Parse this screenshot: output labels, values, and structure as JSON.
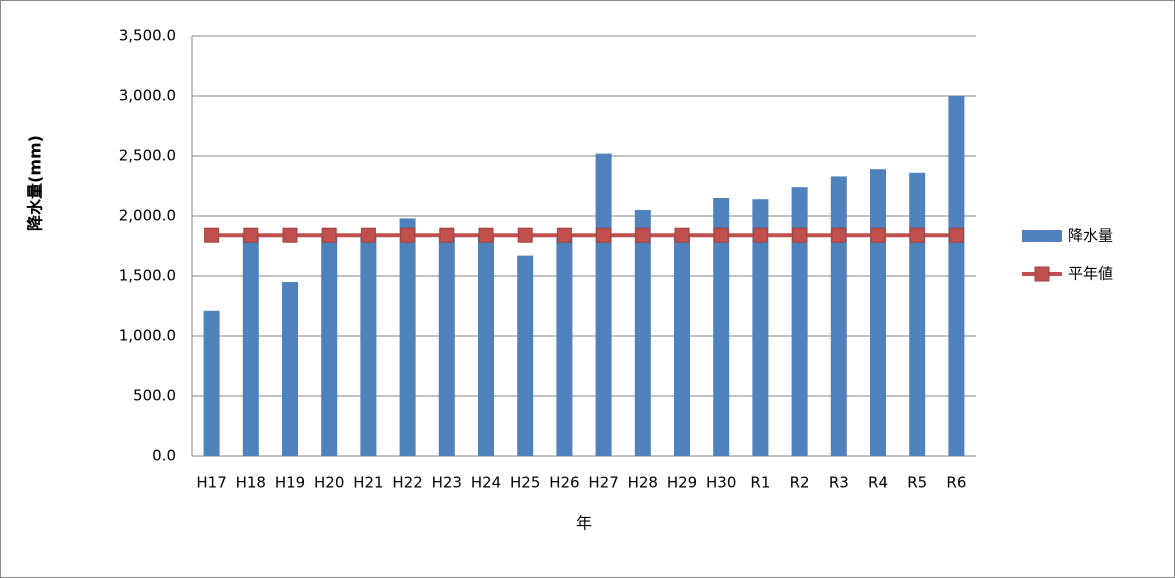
{
  "chart_data": {
    "type": "bar",
    "y_label": "降水量(mm)",
    "x_label": "年",
    "categories": [
      "H17",
      "H18",
      "H19",
      "H20",
      "H21",
      "H22",
      "H23",
      "H24",
      "H25",
      "H26",
      "H27",
      "H28",
      "H29",
      "H30",
      "R1",
      "R2",
      "R3",
      "R4",
      "R5",
      "R6"
    ],
    "series": [
      {
        "name": "降水量",
        "type": "bar",
        "color": "#4f81bd",
        "values": [
          1210,
          1860,
          1450,
          1850,
          1850,
          1980,
          1850,
          1850,
          1670,
          1850,
          2520,
          2050,
          1840,
          2150,
          2140,
          2240,
          2330,
          2390,
          2360,
          3000
        ]
      },
      {
        "name": "平年値",
        "type": "line",
        "color": "#c0504d",
        "values": [
          1840,
          1840,
          1840,
          1840,
          1840,
          1840,
          1840,
          1840,
          1840,
          1840,
          1840,
          1840,
          1840,
          1840,
          1840,
          1840,
          1840,
          1840,
          1840,
          1840
        ]
      }
    ],
    "ylim": [
      0,
      3500
    ],
    "yticks": [
      {
        "value": 0,
        "label": "0.0"
      },
      {
        "value": 500,
        "label": "500.0"
      },
      {
        "value": 1000,
        "label": "1,000.0"
      },
      {
        "value": 1500,
        "label": "1,500.0"
      },
      {
        "value": 2000,
        "label": "2,000.0"
      },
      {
        "value": 2500,
        "label": "2,500.0"
      },
      {
        "value": 3000,
        "label": "3,000.0"
      },
      {
        "value": 3500,
        "label": "3,500.0"
      }
    ],
    "grid": true,
    "legend": "right"
  }
}
